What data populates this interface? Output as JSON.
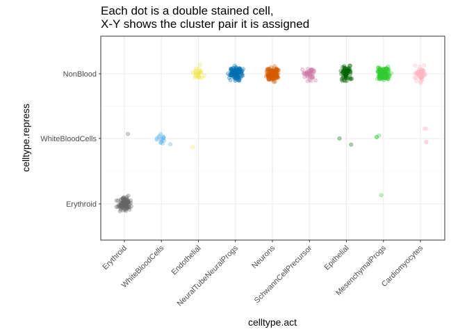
{
  "chart_data": {
    "type": "scatter",
    "jitter": true,
    "title_lines": [
      "Each dot is a double stained cell,",
      "X-Y shows the cluster pair it is assigned"
    ],
    "xlabel": "celltype.act",
    "ylabel": "celltype.repress",
    "x_categories": [
      "Erythroid",
      "WhiteBloodCells",
      "Endothelial",
      "NeuralTubeNeuralProgs",
      "Neurons",
      "SchwannCellPrecursor",
      "Epithelial",
      "MesenchymalProgs",
      "Cardiomyocytes"
    ],
    "y_categories": [
      "Erythroid",
      "WhiteBloodCells",
      "NonBlood"
    ],
    "grid": true,
    "point_alpha": 0.3,
    "series": [
      {
        "x": "Erythroid",
        "color": "#666666",
        "counts": {
          "Erythroid": 110,
          "WhiteBloodCells": 1
        }
      },
      {
        "x": "WhiteBloodCells",
        "color": "#56B4E9",
        "counts": {
          "WhiteBloodCells": 16
        }
      },
      {
        "x": "Endothelial",
        "color": "#F0E442",
        "counts": {
          "NonBlood": 22,
          "WhiteBloodCells": 1
        }
      },
      {
        "x": "NeuralTubeNeuralProgs",
        "color": "#0072B2",
        "counts": {
          "NonBlood": 130
        }
      },
      {
        "x": "Neurons",
        "color": "#D55E00",
        "counts": {
          "NonBlood": 150
        }
      },
      {
        "x": "SchwannCellPrecursor",
        "color": "#CC79A7",
        "counts": {
          "NonBlood": 45
        }
      },
      {
        "x": "Epithelial",
        "color": "#006400",
        "counts": {
          "NonBlood": 65,
          "WhiteBloodCells": 2
        }
      },
      {
        "x": "MesenchymalProgs",
        "color": "#32CD32",
        "counts": {
          "NonBlood": 170,
          "WhiteBloodCells": 3,
          "Erythroid": 1
        }
      },
      {
        "x": "Cardiomyocytes",
        "color": "#FFB6C1",
        "counts": {
          "NonBlood": 60,
          "WhiteBloodCells": 4
        }
      }
    ]
  }
}
